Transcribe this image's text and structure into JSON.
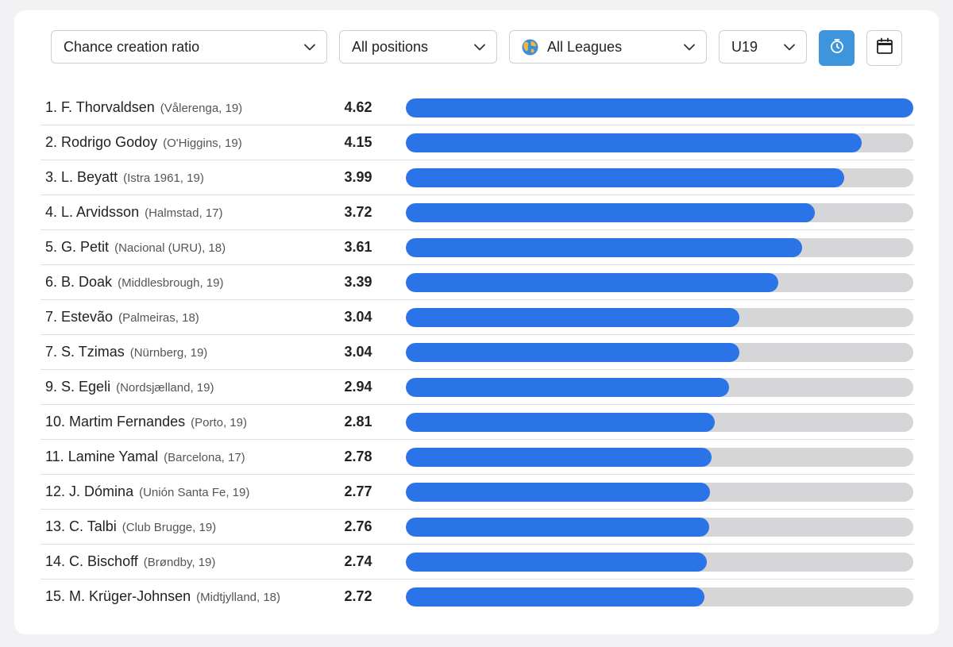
{
  "filters": {
    "metric": "Chance creation ratio",
    "position": "All positions",
    "league": "All Leagues",
    "age": "U19"
  },
  "icons": {
    "league": "globe-icon",
    "dropdown": "chevron-down-icon",
    "timer": "stopwatch-icon",
    "calendar": "calendar-icon"
  },
  "colors": {
    "bar_fill": "#2b74e8",
    "bar_track": "#d6d6d8",
    "active_button": "#3f95dc"
  },
  "chart_data": {
    "type": "bar",
    "orientation": "horizontal",
    "xlim": [
      0,
      4.62
    ],
    "players": [
      {
        "rank": "1.",
        "name": "F. Thorvaldsen",
        "club": "(Vålerenga, 19)",
        "value": 4.62
      },
      {
        "rank": "2.",
        "name": "Rodrigo Godoy",
        "club": "(O'Higgins, 19)",
        "value": 4.15
      },
      {
        "rank": "3.",
        "name": "L. Beyatt",
        "club": "(Istra 1961, 19)",
        "value": 3.99
      },
      {
        "rank": "4.",
        "name": "L. Arvidsson",
        "club": "(Halmstad, 17)",
        "value": 3.72
      },
      {
        "rank": "5.",
        "name": "G. Petit",
        "club": "(Nacional (URU), 18)",
        "value": 3.61
      },
      {
        "rank": "6.",
        "name": "B. Doak",
        "club": "(Middlesbrough, 19)",
        "value": 3.39
      },
      {
        "rank": "7.",
        "name": "Estevão",
        "club": "(Palmeiras, 18)",
        "value": 3.04
      },
      {
        "rank": "7.",
        "name": "S. Tzimas",
        "club": "(Nürnberg, 19)",
        "value": 3.04
      },
      {
        "rank": "9.",
        "name": "S. Egeli",
        "club": "(Nordsjælland, 19)",
        "value": 2.94
      },
      {
        "rank": "10.",
        "name": "Martim Fernandes",
        "club": "(Porto, 19)",
        "value": 2.81
      },
      {
        "rank": "11.",
        "name": "Lamine Yamal",
        "club": "(Barcelona, 17)",
        "value": 2.78
      },
      {
        "rank": "12.",
        "name": "J. Dómina",
        "club": "(Unión Santa Fe, 19)",
        "value": 2.77
      },
      {
        "rank": "13.",
        "name": "C. Talbi",
        "club": "(Club Brugge, 19)",
        "value": 2.76
      },
      {
        "rank": "14.",
        "name": "C. Bischoff",
        "club": "(Brøndby, 19)",
        "value": 2.74
      },
      {
        "rank": "15.",
        "name": "M. Krüger-Johnsen",
        "club": "(Midtjylland, 18)",
        "value": 2.72
      }
    ]
  }
}
